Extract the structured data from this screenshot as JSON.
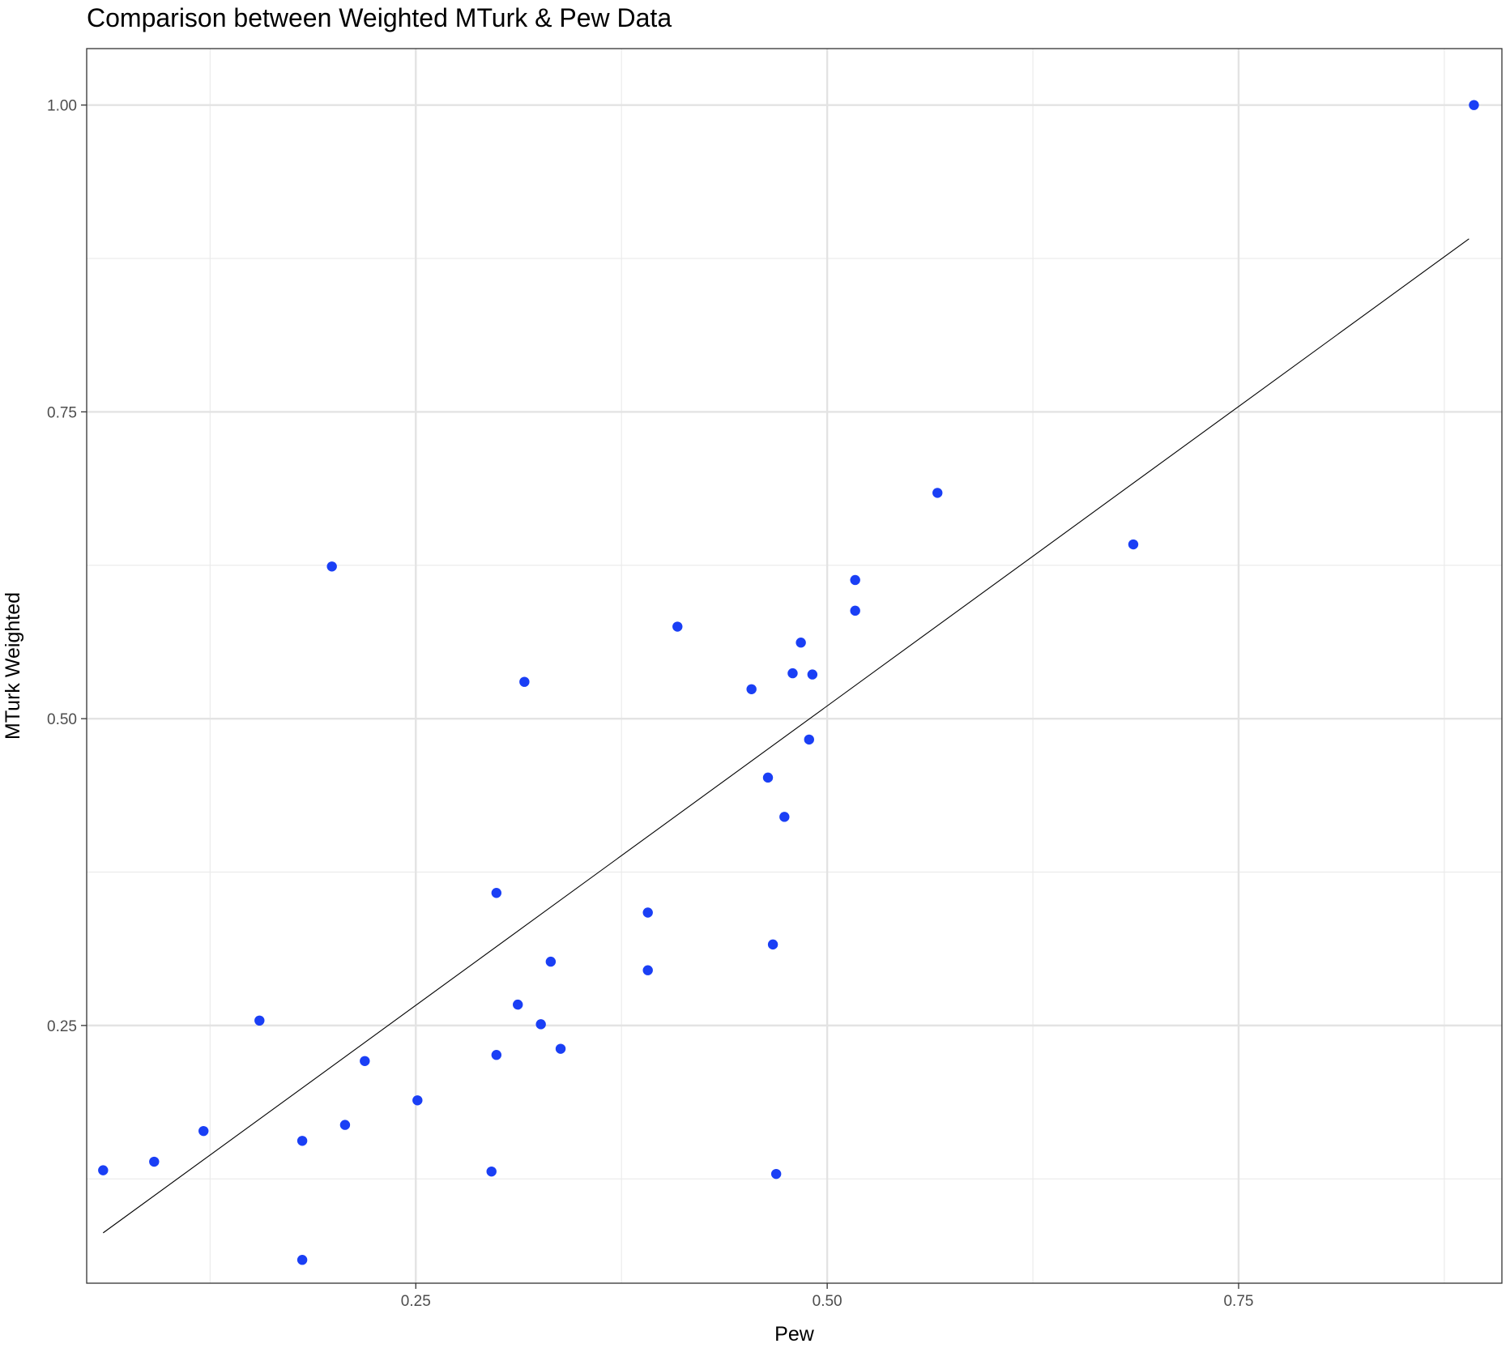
{
  "chart_data": {
    "type": "scatter",
    "title": "Comparison between Weighted MTurk & Pew Data",
    "xlabel": "Pew",
    "ylabel": "MTurk Weighted",
    "xlim": [
      0.05,
      0.91
    ],
    "ylim": [
      0.04,
      1.046
    ],
    "x_ticks": [
      0.25,
      0.5,
      0.75
    ],
    "x_tick_labels": [
      "0.25",
      "0.50",
      "0.75"
    ],
    "y_ticks": [
      0.25,
      0.5,
      0.75,
      1.0
    ],
    "y_tick_labels": [
      "0.25",
      "0.50",
      "0.75",
      "1.00"
    ],
    "x_minor_ticks": [
      0.125,
      0.375,
      0.625,
      0.875
    ],
    "y_minor_ticks": [
      0.125,
      0.375,
      0.625,
      0.875
    ],
    "grid": true,
    "point_color": "#1a3ff5",
    "line_color": "#000000",
    "fit_line": {
      "x": [
        0.06,
        0.89
      ],
      "y": [
        0.081,
        0.891
      ]
    },
    "points": [
      {
        "x": 0.06,
        "y": 0.132
      },
      {
        "x": 0.091,
        "y": 0.139
      },
      {
        "x": 0.121,
        "y": 0.164
      },
      {
        "x": 0.155,
        "y": 0.254
      },
      {
        "x": 0.181,
        "y": 0.156
      },
      {
        "x": 0.181,
        "y": 0.059
      },
      {
        "x": 0.199,
        "y": 0.624
      },
      {
        "x": 0.207,
        "y": 0.169
      },
      {
        "x": 0.219,
        "y": 0.221
      },
      {
        "x": 0.251,
        "y": 0.189
      },
      {
        "x": 0.296,
        "y": 0.131
      },
      {
        "x": 0.299,
        "y": 0.226
      },
      {
        "x": 0.299,
        "y": 0.358
      },
      {
        "x": 0.312,
        "y": 0.267
      },
      {
        "x": 0.316,
        "y": 0.53
      },
      {
        "x": 0.326,
        "y": 0.251
      },
      {
        "x": 0.332,
        "y": 0.302
      },
      {
        "x": 0.338,
        "y": 0.231
      },
      {
        "x": 0.391,
        "y": 0.295
      },
      {
        "x": 0.391,
        "y": 0.342
      },
      {
        "x": 0.409,
        "y": 0.575
      },
      {
        "x": 0.454,
        "y": 0.524
      },
      {
        "x": 0.464,
        "y": 0.452
      },
      {
        "x": 0.467,
        "y": 0.316
      },
      {
        "x": 0.469,
        "y": 0.129
      },
      {
        "x": 0.474,
        "y": 0.42
      },
      {
        "x": 0.479,
        "y": 0.537
      },
      {
        "x": 0.484,
        "y": 0.562
      },
      {
        "x": 0.489,
        "y": 0.483
      },
      {
        "x": 0.491,
        "y": 0.536
      },
      {
        "x": 0.517,
        "y": 0.588
      },
      {
        "x": 0.517,
        "y": 0.613
      },
      {
        "x": 0.567,
        "y": 0.684
      },
      {
        "x": 0.686,
        "y": 0.642
      },
      {
        "x": 0.893,
        "y": 1.0
      }
    ]
  }
}
